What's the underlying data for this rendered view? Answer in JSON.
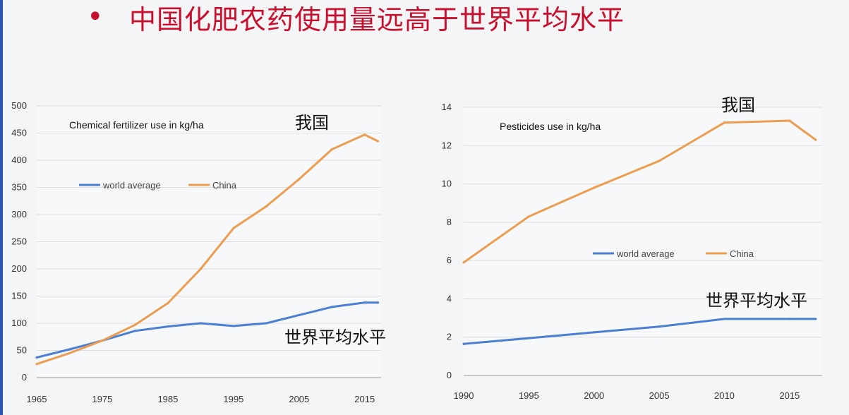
{
  "slide": {
    "bullet": "•",
    "title": "中国化肥农药使用量远高于世界平均水平"
  },
  "colors": {
    "world": "#4a7fd4",
    "china": "#ed9d50",
    "title": "#c8102e",
    "grid": "#dcdcdc"
  },
  "chart_data": [
    {
      "type": "line",
      "title": "Chemical fertilizer use in kg/ha",
      "xlabel": "",
      "ylabel": "",
      "x_ticks": [
        "1965",
        "1975",
        "1985",
        "1995",
        "2005",
        "2015"
      ],
      "y_ticks": [
        "0",
        "50",
        "100",
        "150",
        "200",
        "250",
        "300",
        "350",
        "400",
        "450",
        "500"
      ],
      "xlim": [
        1965,
        2017.5
      ],
      "ylim": [
        0,
        500
      ],
      "grid": true,
      "legend_position": "middle-left",
      "annotations": {
        "china": "我国",
        "world": "世界平均水平"
      },
      "series": [
        {
          "name": "world average",
          "color": "#4a7fd4",
          "points": [
            [
              1965,
              37
            ],
            [
              1970,
              52
            ],
            [
              1975,
              68
            ],
            [
              1980,
              86
            ],
            [
              1985,
              94
            ],
            [
              1990,
              100
            ],
            [
              1995,
              95
            ],
            [
              2000,
              100
            ],
            [
              2005,
              115
            ],
            [
              2010,
              130
            ],
            [
              2015,
              138
            ],
            [
              2017,
              138
            ]
          ]
        },
        {
          "name": "China",
          "color": "#ed9d50",
          "points": [
            [
              1965,
              25
            ],
            [
              1970,
              45
            ],
            [
              1975,
              68
            ],
            [
              1980,
              97
            ],
            [
              1985,
              137
            ],
            [
              1990,
              200
            ],
            [
              1995,
              275
            ],
            [
              2000,
              315
            ],
            [
              2005,
              365
            ],
            [
              2010,
              420
            ],
            [
              2015,
              447
            ],
            [
              2017,
              435
            ]
          ]
        }
      ]
    },
    {
      "type": "line",
      "title": "Pesticides use in kg/ha",
      "xlabel": "",
      "ylabel": "",
      "x_ticks": [
        "1990",
        "1995",
        "2000",
        "2005",
        "2010",
        "2015"
      ],
      "y_ticks": [
        "0",
        "2",
        "4",
        "6",
        "8",
        "10",
        "12",
        "14"
      ],
      "xlim": [
        1990,
        2017.5
      ],
      "ylim": [
        0,
        14
      ],
      "grid": true,
      "legend_position": "middle-right",
      "annotations": {
        "china": "我国",
        "world": "世界平均水平"
      },
      "series": [
        {
          "name": "world average",
          "color": "#4a7fd4",
          "points": [
            [
              1990,
              1.65
            ],
            [
              1995,
              1.95
            ],
            [
              2000,
              2.25
            ],
            [
              2005,
              2.55
            ],
            [
              2010,
              2.95
            ],
            [
              2015,
              2.95
            ],
            [
              2017,
              2.95
            ]
          ]
        },
        {
          "name": "China",
          "color": "#ed9d50",
          "points": [
            [
              1990,
              5.9
            ],
            [
              1995,
              8.3
            ],
            [
              2000,
              9.8
            ],
            [
              2005,
              11.2
            ],
            [
              2010,
              13.2
            ],
            [
              2015,
              13.3
            ],
            [
              2017,
              12.3
            ]
          ]
        }
      ]
    }
  ]
}
